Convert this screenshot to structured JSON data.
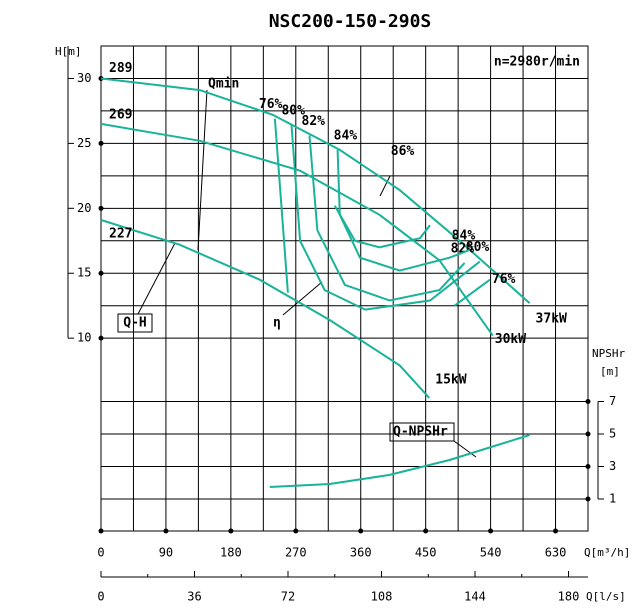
{
  "chart_data": {
    "type": "line",
    "title": "NSC200-150-290S",
    "subtitle": "n=2980r/min",
    "xlabel": "Q[m³/h]",
    "x2label": "Q[l/s]",
    "ylabel": "H[m]",
    "y2label": "NPSHr",
    "y2unit": "[m]",
    "xlim": [
      0,
      675
    ],
    "xticks": [
      0,
      90,
      180,
      270,
      360,
      450,
      540,
      630
    ],
    "x2lim": [
      0,
      187.5
    ],
    "x2ticks": [
      0,
      36,
      72,
      108,
      144,
      180
    ],
    "ylim": [
      -4.85,
      32.5
    ],
    "yticks": [
      10,
      15,
      20,
      25,
      30
    ],
    "y2lim": [
      -0.97,
      28.88
    ],
    "y2ticks": [
      1,
      3,
      5,
      7
    ],
    "grid": true,
    "annotations": [
      "Qmin",
      "Q-H",
      "η"
    ],
    "series": [
      {
        "name": "289",
        "end_label": "37kW",
        "color": "#19b39a",
        "x": [
          0,
          137,
          238,
          331,
          414,
          497,
          594
        ],
        "values": [
          30,
          29.1,
          27.2,
          24.5,
          21.4,
          17.5,
          12.7
        ]
      },
      {
        "name": "269",
        "end_label": "30kW",
        "color": "#19b39a",
        "x": [
          0,
          137,
          276,
          386,
          469,
          543
        ],
        "values": [
          26.5,
          25.2,
          22.9,
          19.5,
          16.0,
          10.2
        ]
      },
      {
        "name": "227",
        "end_label": "15kW",
        "color": "#19b39a",
        "x": [
          0,
          109,
          220,
          317,
          414,
          455
        ],
        "values": [
          19.1,
          17.2,
          14.5,
          11.4,
          7.9,
          5.4
        ]
      },
      {
        "name": "76%",
        "color": "#19b39a",
        "x": [
          241,
          259
        ],
        "values": [
          26.9,
          13.5
        ]
      },
      {
        "name": "80%",
        "color": "#19b39a",
        "x": [
          264,
          276,
          310,
          366,
          456,
          525
        ],
        "values": [
          26.4,
          17.5,
          13.7,
          12.2,
          12.9,
          15.9
        ]
      },
      {
        "name": "82%",
        "color": "#19b39a",
        "x": [
          289,
          300,
          338,
          400,
          469,
          504
        ],
        "values": [
          25.6,
          18.3,
          14.1,
          12.9,
          13.7,
          15.8
        ]
      },
      {
        "name": "84%",
        "color": "#19b39a",
        "x": [
          328,
          331,
          359,
          414,
          483,
          511
        ],
        "values": [
          24.5,
          19.5,
          16.2,
          15.2,
          16.2,
          16.8
        ]
      },
      {
        "name": "86%",
        "color": "#19b39a",
        "x": [
          324,
          352,
          386,
          442,
          456
        ],
        "values": [
          20.2,
          17.5,
          17.0,
          17.7,
          18.7
        ]
      },
      {
        "name": "76%",
        "color": "#19b39a",
        "x": [
          539,
          490
        ],
        "values": [
          14.5,
          12.5
        ]
      },
      {
        "name": "Q-NPSHr",
        "axis": "y2",
        "color": "#19b39a",
        "x": [
          234,
          317,
          400,
          483,
          594
        ],
        "values": [
          1.74,
          1.92,
          2.48,
          3.4,
          4.94
        ]
      }
    ]
  }
}
